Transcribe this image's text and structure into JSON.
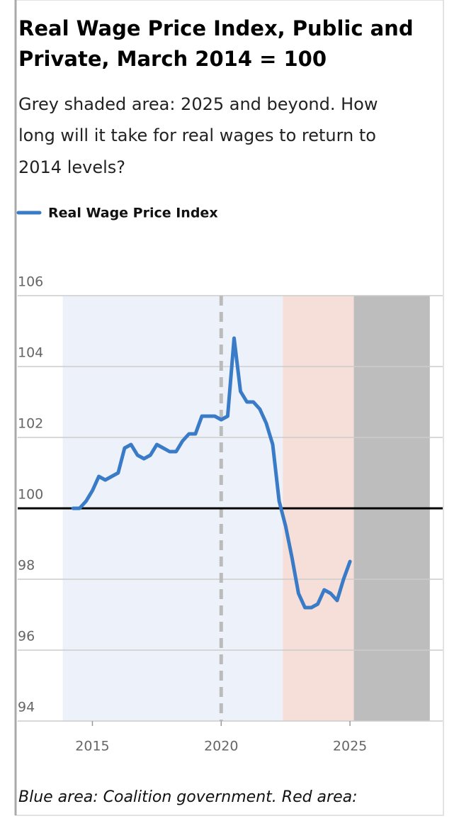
{
  "chart_data": {
    "type": "line",
    "title": [
      "Real Wage Price Index, Public and",
      "Private, March 2014 = 100"
    ],
    "subtitle": [
      "Grey shaded area: 2025 and beyond. How",
      "long will it take for real wages to return to",
      "2014 levels?"
    ],
    "footnote": "Blue area: Coalition government. Red area:",
    "x": [
      2014.25,
      2014.5,
      2014.75,
      2015,
      2015.25,
      2015.5,
      2015.75,
      2016,
      2016.25,
      2016.5,
      2016.75,
      2017,
      2017.25,
      2017.5,
      2017.75,
      2018,
      2018.25,
      2018.5,
      2018.75,
      2019,
      2019.25,
      2019.5,
      2019.75,
      2020,
      2020.25,
      2020.5,
      2020.75,
      2021,
      2021.25,
      2021.5,
      2021.75,
      2022,
      2022.25,
      2022.5,
      2022.75,
      2023,
      2023.25,
      2023.5,
      2023.75,
      2024,
      2024.25,
      2024.5,
      2024.75,
      2025
    ],
    "series": [
      {
        "name": "Real Wage Price Index",
        "color": "#3a7bc8",
        "values": [
          100.0,
          100.0,
          100.2,
          100.5,
          100.9,
          100.8,
          100.9,
          101.0,
          101.7,
          101.8,
          101.5,
          101.4,
          101.5,
          101.8,
          101.7,
          101.6,
          101.6,
          101.9,
          102.1,
          102.1,
          102.6,
          102.6,
          102.6,
          102.5,
          102.6,
          104.8,
          103.3,
          103.0,
          103.0,
          102.8,
          102.4,
          101.8,
          100.2,
          99.5,
          98.6,
          97.6,
          97.2,
          97.2,
          97.3,
          97.7,
          97.6,
          97.4,
          98.0,
          98.5
        ]
      }
    ],
    "xlim": [
      2012.1,
      2028.6
    ],
    "xticks": [
      2015,
      2020,
      2025
    ],
    "ylim": [
      94,
      106
    ],
    "yticks": [
      94,
      96,
      98,
      100,
      102,
      104,
      106
    ],
    "grid": true,
    "reference_line": 100,
    "dashed_vline": 2020.0,
    "regions": [
      {
        "start": 2013.85,
        "end": 2022.39,
        "color": "#edf2fa"
      },
      {
        "start": 2022.39,
        "end": 2025.15,
        "color": "#f7dfd9"
      },
      {
        "start": 2025.15,
        "end": 2028.1,
        "color": "#bdbdbd"
      }
    ],
    "legend": "top-left"
  }
}
